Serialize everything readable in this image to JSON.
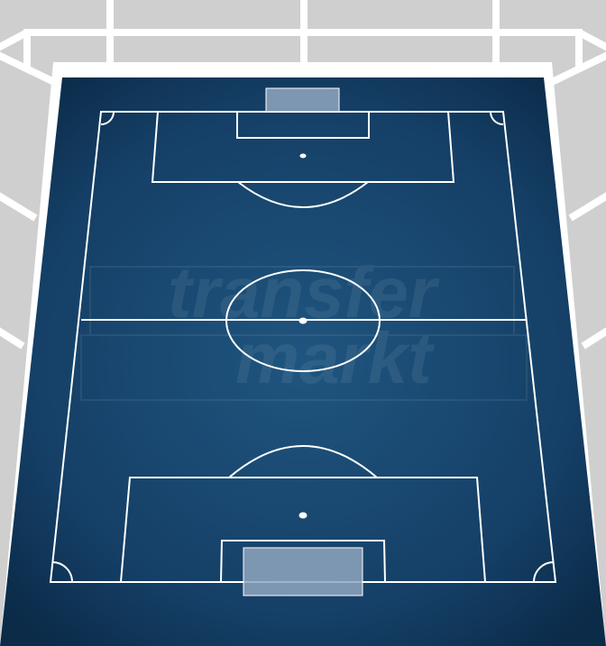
{
  "watermark": {
    "brand_line1": "transfer",
    "brand_line2": "markt"
  },
  "colors": {
    "stands": "#cfcfcf",
    "stand_lines": "#ffffff",
    "pitch_center": "#1d5079",
    "pitch_edge": "#0c2d4c",
    "pitch_lines": "#ffffff",
    "goal_fill": "#8fa6c0"
  }
}
